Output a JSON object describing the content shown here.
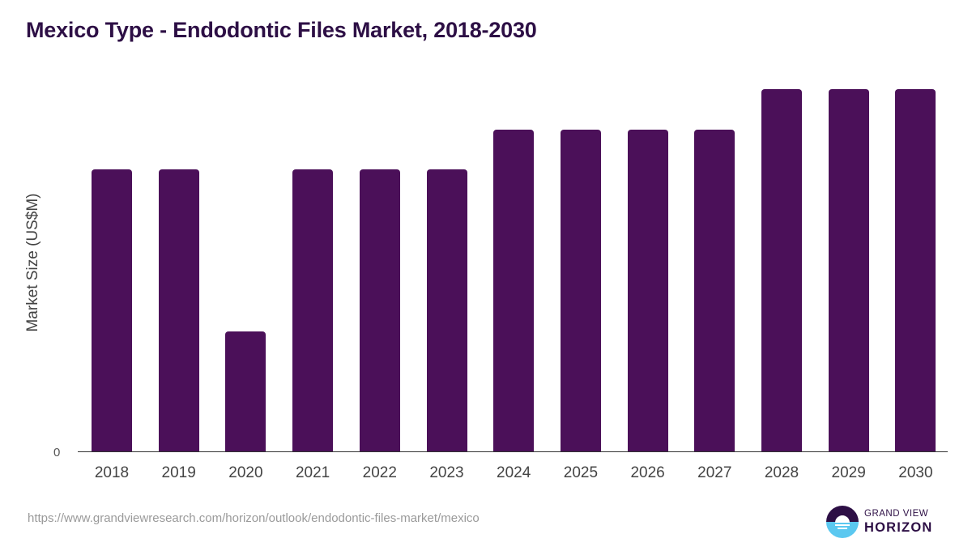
{
  "header": {
    "title": "Mexico Type - Endodontic Files Market, 2018-2030"
  },
  "colors": {
    "bar": "#4b1059",
    "title": "#2d0f45",
    "logo_dark": "#2d0f45",
    "logo_light": "#5bc8f0"
  },
  "chart_data": {
    "type": "bar",
    "title": "Mexico Type - Endodontic Files Market, 2018-2030",
    "xlabel": "",
    "ylabel": "Market Size (US$M)",
    "categories": [
      "2018",
      "2019",
      "2020",
      "2021",
      "2022",
      "2023",
      "2024",
      "2025",
      "2026",
      "2027",
      "2028",
      "2029",
      "2030"
    ],
    "values": [
      0.7,
      0.7,
      0.3,
      0.7,
      0.7,
      0.7,
      0.8,
      0.8,
      0.8,
      0.8,
      0.9,
      0.9,
      0.9
    ],
    "y_ticks": [
      "0"
    ],
    "ylim": [
      0,
      1.0
    ],
    "grid": false,
    "legend": null
  },
  "footer": {
    "source_url": "https://www.grandviewresearch.com/horizon/outlook/endodontic-files-market/mexico",
    "logo_line1": "GRAND VIEW",
    "logo_line2": "HORIZON"
  }
}
